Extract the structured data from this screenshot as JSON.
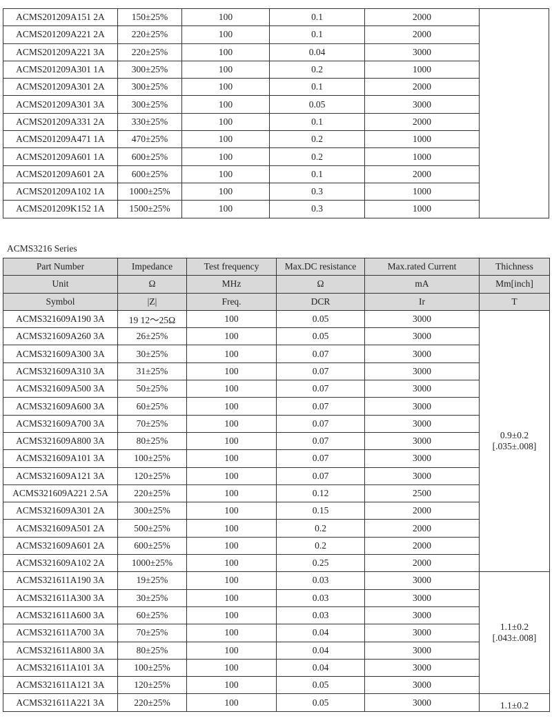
{
  "table1": {
    "rows": [
      [
        "ACMS201209A151 2A",
        "150±25%",
        "100",
        "0.1",
        "2000"
      ],
      [
        "ACMS201209A221 2A",
        "220±25%",
        "100",
        "0.1",
        "2000"
      ],
      [
        "ACMS201209A221 3A",
        "220±25%",
        "100",
        "0.04",
        "3000"
      ],
      [
        "ACMS201209A301 1A",
        "300±25%",
        "100",
        "0.2",
        "1000"
      ],
      [
        "ACMS201209A301 2A",
        "300±25%",
        "100",
        "0.1",
        "2000"
      ],
      [
        "ACMS201209A301 3A",
        "300±25%",
        "100",
        "0.05",
        "3000"
      ],
      [
        "ACMS201209A331 2A",
        "330±25%",
        "100",
        "0.1",
        "2000"
      ],
      [
        "ACMS201209A471 1A",
        "470±25%",
        "100",
        "0.2",
        "1000"
      ],
      [
        "ACMS201209A601 1A",
        "600±25%",
        "100",
        "0.2",
        "1000"
      ],
      [
        "ACMS201209A601 2A",
        "600±25%",
        "100",
        "0.1",
        "2000"
      ],
      [
        "ACMS201209A102 1A",
        "1000±25%",
        "100",
        "0.3",
        "1000"
      ],
      [
        "ACMS201209K152 1A",
        "1500±25%",
        "100",
        "0.3",
        "1000"
      ]
    ],
    "thickness": ""
  },
  "series_label": "ACMS3216 Series",
  "table2": {
    "header": [
      [
        "Part Number",
        "Impedance",
        "Test frequency",
        "Max.DC resistance",
        "Max.rated Current",
        "Thichness"
      ],
      [
        "Unit",
        "Ω",
        "MHz",
        "Ω",
        "mA",
        "Mm[inch]"
      ],
      [
        "Symbol",
        "|Z|",
        "Freq.",
        "DCR",
        "Ir",
        "T"
      ]
    ],
    "groups": [
      {
        "thickness": [
          "0.9±0.2",
          "[.035±.008]"
        ],
        "rows": [
          [
            "ACMS321609A190 3A",
            "19 12～25Ω",
            "100",
            "0.05",
            "3000"
          ],
          [
            "ACMS321609A260 3A",
            "26±25%",
            "100",
            "0.05",
            "3000"
          ],
          [
            "ACMS321609A300 3A",
            "30±25%",
            "100",
            "0.07",
            "3000"
          ],
          [
            "ACMS321609A310 3A",
            "31±25%",
            "100",
            "0.07",
            "3000"
          ],
          [
            "ACMS321609A500 3A",
            "50±25%",
            "100",
            "0.07",
            "3000"
          ],
          [
            "ACMS321609A600 3A",
            "60±25%",
            "100",
            "0.07",
            "3000"
          ],
          [
            "ACMS321609A700 3A",
            "70±25%",
            "100",
            "0.07",
            "3000"
          ],
          [
            "ACMS321609A800 3A",
            "80±25%",
            "100",
            "0.07",
            "3000"
          ],
          [
            "ACMS321609A101 3A",
            "100±25%",
            "100",
            "0.07",
            "3000"
          ],
          [
            "ACMS321609A121 3A",
            "120±25%",
            "100",
            "0.07",
            "3000"
          ],
          [
            "ACMS321609A221 2.5A",
            "220±25%",
            "100",
            "0.12",
            "2500"
          ],
          [
            "ACMS321609A301 2A",
            "300±25%",
            "100",
            "0.15",
            "2000"
          ],
          [
            "ACMS321609A501 2A",
            "500±25%",
            "100",
            "0.2",
            "2000"
          ],
          [
            "ACMS321609A601 2A",
            "600±25%",
            "100",
            "0.2",
            "2000"
          ],
          [
            "ACMS321609A102 2A",
            "1000±25%",
            "100",
            "0.25",
            "2000"
          ]
        ]
      },
      {
        "thickness": [
          "1.1±0.2",
          "[.043±.008]"
        ],
        "rows": [
          [
            "ACMS321611A190 3A",
            "19±25%",
            "100",
            "0.03",
            "3000"
          ],
          [
            "ACMS321611A300 3A",
            "30±25%",
            "100",
            "0.03",
            "3000"
          ],
          [
            "ACMS321611A600 3A",
            "60±25%",
            "100",
            "0.03",
            "3000"
          ],
          [
            "ACMS321611A700 3A",
            "70±25%",
            "100",
            "0.04",
            "3000"
          ],
          [
            "ACMS321611A800 3A",
            "80±25%",
            "100",
            "0.04",
            "3000"
          ],
          [
            "ACMS321611A101 3A",
            "100±25%",
            "100",
            "0.04",
            "3000"
          ],
          [
            "ACMS321611A121 3A",
            "120±25%",
            "100",
            "0.05",
            "3000"
          ]
        ]
      },
      {
        "thickness": [
          "1.1±0.2"
        ],
        "rows": [
          [
            "ACMS321611A221 3A",
            "220±25%",
            "100",
            "0.05",
            "3000"
          ]
        ]
      }
    ]
  }
}
